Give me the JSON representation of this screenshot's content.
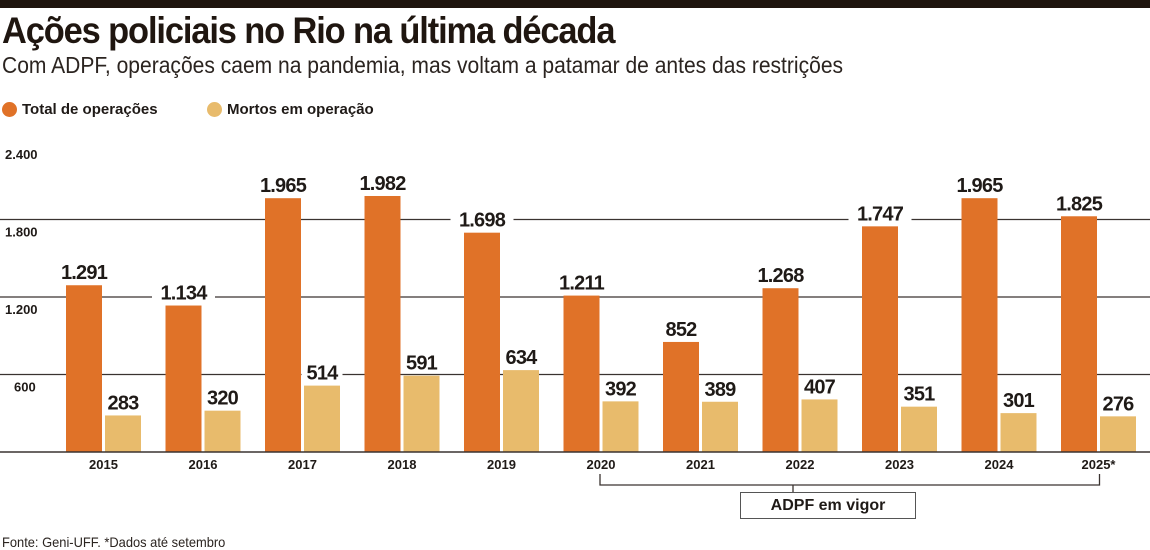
{
  "header": {
    "title": "Ações policiais no Rio na última década",
    "subtitle": "Com ADPF, operações caem na pandemia, mas voltam a patamar de antes das restrições"
  },
  "legend": [
    {
      "label": "Total de operações",
      "color": "#e07228"
    },
    {
      "label": "Mortos em operação",
      "color": "#e8bb6c"
    }
  ],
  "annotation": {
    "label": "ADPF em vigor",
    "from": "2020",
    "to": "2025*"
  },
  "footer": {
    "source": "Fonte: Geni-UFF. *Dados até setembro"
  },
  "chart_data": {
    "type": "bar",
    "title": "Ações policiais no Rio na última década",
    "subtitle": "Com ADPF, operações caem na pandemia, mas voltam a patamar de antes das restrições",
    "xlabel": "",
    "ylabel": "",
    "ylim": [
      0,
      2400
    ],
    "grid": true,
    "legend_position": "top-left",
    "yticks": [
      600,
      1200,
      1800,
      2400
    ],
    "ytick_labels": [
      "600",
      "1.200",
      "1.800",
      "2.400"
    ],
    "categories": [
      "2015",
      "2016",
      "2017",
      "2018",
      "2019",
      "2020",
      "2021",
      "2022",
      "2023",
      "2024",
      "2025*"
    ],
    "series": [
      {
        "name": "Total de operações",
        "color": "#e07228",
        "values": [
          1291,
          1134,
          1965,
          1982,
          1698,
          1211,
          852,
          1268,
          1747,
          1965,
          1825
        ],
        "labels": [
          "1.291",
          "1.134",
          "1.965",
          "1.982",
          "1.698",
          "1.211",
          "852",
          "1.268",
          "1.747",
          "1.965",
          "1.825"
        ]
      },
      {
        "name": "Mortos em operação",
        "color": "#e8bb6c",
        "values": [
          283,
          320,
          514,
          591,
          634,
          392,
          389,
          407,
          351,
          301,
          276
        ],
        "labels": [
          "283",
          "320",
          "514",
          "591",
          "634",
          "392",
          "389",
          "407",
          "351",
          "301",
          "276"
        ]
      }
    ]
  }
}
